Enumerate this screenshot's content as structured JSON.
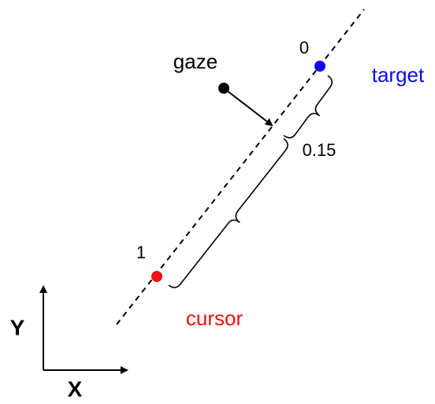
{
  "labels": {
    "gaze": "gaze",
    "target_index": "0",
    "target": "target",
    "distance": "0.15",
    "cursor_index": "1",
    "cursor": "cursor",
    "y_axis": "Y",
    "x_axis": "X"
  }
}
